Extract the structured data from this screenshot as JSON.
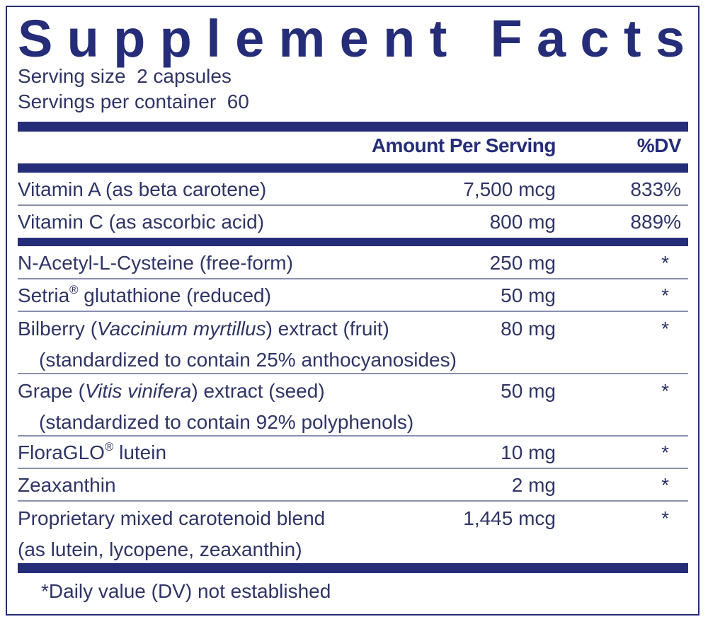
{
  "title": "Supplement Facts",
  "serving": [
    "Serving size  2 capsules",
    "Servings per container  60"
  ],
  "header": {
    "amount": "Amount Per Serving",
    "dv": "%DV"
  },
  "sections": [
    {
      "rows": [
        {
          "name": [
            {
              "text": "Vitamin A (as beta carotene)"
            }
          ],
          "amount": "7,500 mcg",
          "dv": "833%"
        },
        {
          "name": [
            {
              "text": "Vitamin C (as ascorbic acid)"
            }
          ],
          "amount": "800 mg",
          "dv": "889%"
        }
      ]
    },
    {
      "rows": [
        {
          "name": [
            {
              "text": "N-Acetyl-L-Cysteine (free-form)"
            }
          ],
          "amount": "250 mg",
          "dv": "*"
        },
        {
          "name": [
            {
              "text": "Setria"
            },
            {
              "text": "®",
              "sup": true
            },
            {
              "text": " glutathione (reduced)"
            }
          ],
          "amount": "50 mg",
          "dv": "*"
        },
        {
          "name": [
            {
              "text": "Bilberry ("
            },
            {
              "text": "Vaccinium myrtillus",
              "italic": true
            },
            {
              "text": ") extract (fruit)"
            }
          ],
          "note": "(standardized to contain 25% anthocyanosides)",
          "note_indented": true,
          "amount": "80 mg",
          "dv": "*"
        },
        {
          "name": [
            {
              "text": "Grape ("
            },
            {
              "text": "Vitis vinifera",
              "italic": true
            },
            {
              "text": ") extract (seed)"
            }
          ],
          "note": "(standardized to contain 92% polyphenols)",
          "note_indented": true,
          "amount": "50 mg",
          "dv": "*"
        },
        {
          "name": [
            {
              "text": "FloraGLO"
            },
            {
              "text": "®",
              "sup": true
            },
            {
              "text": " lutein"
            }
          ],
          "amount": "10 mg",
          "dv": "*"
        },
        {
          "name": [
            {
              "text": "Zeaxanthin"
            }
          ],
          "amount": "2 mg",
          "dv": "*"
        },
        {
          "name": [
            {
              "text": "Proprietary mixed carotenoid blend"
            }
          ],
          "note": "(as lutein, lycopene, zeaxanthin)",
          "note_indented": false,
          "amount": "1,445 mcg",
          "dv": "*"
        }
      ]
    }
  ],
  "footnote": "*Daily value (DV) not established"
}
